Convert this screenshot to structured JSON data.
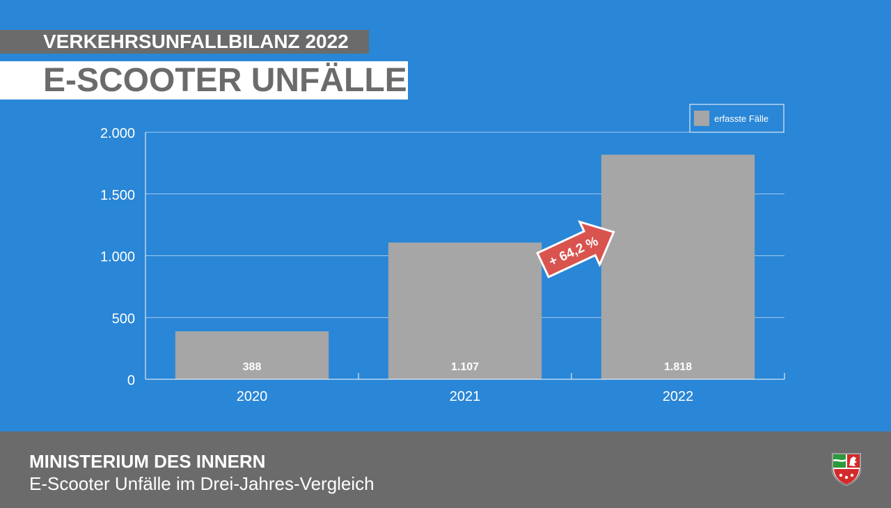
{
  "header": {
    "kicker": "VERKEHRSUNFALLBILANZ 2022",
    "title": "E-SCOOTER UNFÄLLE"
  },
  "footer": {
    "organization": "MINISTERIUM DES INNERN",
    "subtitle": "E-Scooter Unfälle im Drei-Jahres-Vergleich",
    "crest_icon": "nrw-coat-of-arms-icon"
  },
  "colors": {
    "background": "#2a86d6",
    "bar": "#a6a6a6",
    "band": "#6b6b6b",
    "arrow": "#d9534f"
  },
  "chart_data": {
    "type": "bar",
    "categories": [
      "2020",
      "2021",
      "2022"
    ],
    "series": [
      {
        "name": "erfasste Fälle",
        "values": [
          388,
          1107,
          1818
        ]
      }
    ],
    "data_labels": [
      "388",
      "1.107",
      "1.818"
    ],
    "yticks": [
      0,
      500,
      1000,
      1500,
      2000
    ],
    "ytick_labels": [
      "0",
      "500",
      "1.000",
      "1.500",
      "2.000"
    ],
    "ylim": [
      0,
      2000
    ],
    "grid": true,
    "legend": "top-right",
    "annotations": [
      {
        "text": "+ 64,2 %",
        "from": "2021",
        "to": "2022"
      }
    ]
  }
}
